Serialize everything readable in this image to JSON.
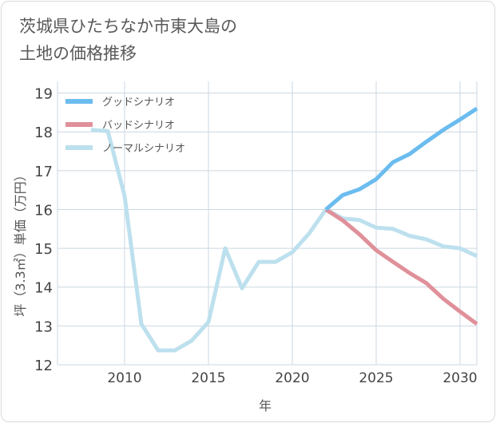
{
  "colors": {
    "good": "#6bbcef",
    "bad": "#e0909a",
    "normal": "#bde0ee",
    "grid": "#cbd7e0",
    "axis_text": "#444444",
    "label_text": "#555555"
  },
  "chart_data": {
    "type": "line",
    "title": "茨城県ひたちなか市東大島の\n土地の価格推移",
    "xlabel": "年",
    "ylabel": "坪（3.3㎡）単価（万円）",
    "xlim": [
      2006,
      2031
    ],
    "ylim": [
      12,
      19.3
    ],
    "xticks": [
      2010,
      2015,
      2020,
      2025,
      2030
    ],
    "yticks": [
      12,
      13,
      14,
      15,
      16,
      17,
      18,
      19
    ],
    "grid": true,
    "legend_position": "top-left",
    "series": [
      {
        "key": "good",
        "name": "グッドシナリオ",
        "x": [
          2022,
          2023,
          2024,
          2025,
          2026,
          2027,
          2028,
          2029,
          2030,
          2031
        ],
        "y": [
          16.0,
          16.37,
          16.52,
          16.78,
          17.22,
          17.43,
          17.75,
          18.05,
          18.32,
          18.6
        ]
      },
      {
        "key": "bad",
        "name": "バッドシナリオ",
        "x": [
          2022,
          2023,
          2024,
          2025,
          2026,
          2027,
          2028,
          2029,
          2030,
          2031
        ],
        "y": [
          16.0,
          15.72,
          15.36,
          14.95,
          14.65,
          14.36,
          14.1,
          13.7,
          13.37,
          13.05
        ]
      },
      {
        "key": "normal",
        "name": "ノーマルシナリオ",
        "x": [
          2008,
          2009,
          2010,
          2011,
          2012,
          2013,
          2014,
          2015,
          2016,
          2017,
          2018,
          2019,
          2020,
          2021,
          2022,
          2023,
          2024,
          2025,
          2026,
          2027,
          2028,
          2029,
          2030,
          2031
        ],
        "y": [
          18.05,
          18.02,
          16.35,
          13.05,
          12.37,
          12.37,
          12.62,
          13.1,
          15.0,
          13.97,
          14.65,
          14.65,
          14.9,
          15.38,
          16.0,
          15.77,
          15.73,
          15.53,
          15.5,
          15.32,
          15.23,
          15.05,
          15.0,
          14.8
        ]
      }
    ]
  }
}
